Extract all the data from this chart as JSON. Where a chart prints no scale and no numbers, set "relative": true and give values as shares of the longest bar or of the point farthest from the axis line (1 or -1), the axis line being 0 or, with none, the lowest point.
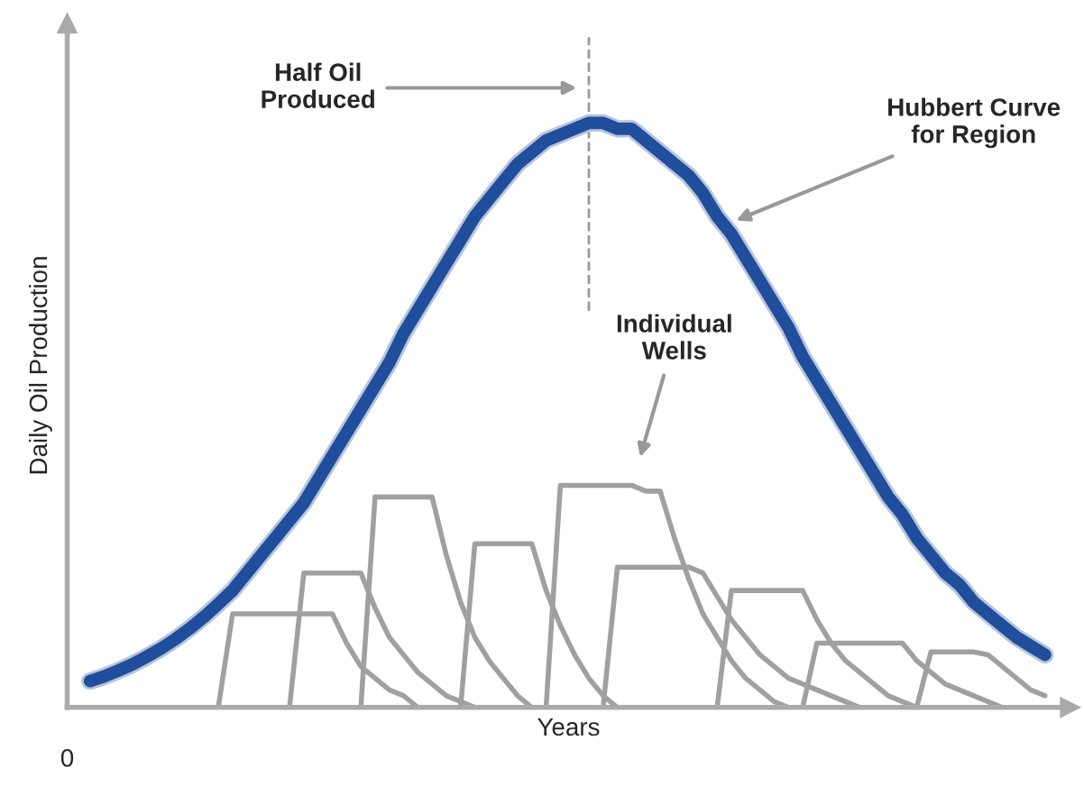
{
  "chart_data": {
    "type": "line",
    "relative": true,
    "xlabel": "Years",
    "ylabel": "Daily Oil Production",
    "categories": [
      null,
      null,
      null,
      null,
      null,
      null,
      null,
      null,
      null,
      null,
      null,
      null,
      null,
      null,
      null,
      null,
      null,
      null,
      null,
      null,
      null,
      null,
      null,
      null,
      null,
      null,
      null,
      null,
      null,
      null,
      null,
      null,
      null,
      null,
      null,
      null,
      null,
      null,
      null,
      null,
      null,
      null,
      null,
      null,
      null,
      null,
      null,
      null,
      null,
      null,
      null,
      null,
      null,
      null,
      null,
      null,
      null,
      null,
      null,
      null,
      null,
      null,
      null,
      null,
      null,
      null,
      null,
      null
    ],
    "series": [
      {
        "color": "#1f4e9c",
        "values": [
          0.045,
          0.053,
          0.063,
          0.074,
          0.087,
          0.101,
          0.117,
          0.135,
          0.155,
          0.177,
          0.2,
          0.23,
          0.26,
          0.29,
          0.32,
          0.35,
          0.39,
          0.43,
          0.47,
          0.51,
          0.55,
          0.59,
          0.64,
          0.68,
          0.72,
          0.76,
          0.8,
          0.84,
          0.87,
          0.9,
          0.93,
          0.95,
          0.97,
          0.98,
          0.99,
          1.0,
          1.0,
          0.99,
          0.99,
          0.97,
          0.95,
          0.93,
          0.91,
          0.88,
          0.84,
          0.81,
          0.77,
          0.73,
          0.69,
          0.65,
          0.6,
          0.56,
          0.52,
          0.48,
          0.44,
          0.4,
          0.36,
          0.33,
          0.29,
          0.26,
          0.23,
          0.21,
          0.18,
          0.16,
          0.14,
          0.12,
          0.105,
          0.09
        ]
      },
      {
        "color": "#a0a0a0",
        "values": [
          null,
          null,
          null,
          null,
          null,
          null,
          null,
          null,
          null,
          0,
          0.16,
          0.16,
          0.16,
          0.16,
          0.16,
          0.16,
          0.16,
          0.16,
          0.11,
          0.07,
          0.05,
          0.03,
          0.02,
          0,
          null,
          null,
          null,
          null,
          null,
          null,
          null,
          null,
          null,
          null,
          null,
          null,
          null,
          null,
          null,
          null,
          null,
          null,
          null,
          null,
          null,
          null,
          null,
          null,
          null,
          null,
          null,
          null,
          null,
          null,
          null,
          null,
          null,
          null,
          null,
          null,
          null,
          null,
          null,
          null,
          null,
          null,
          null,
          null
        ]
      },
      {
        "color": "#a0a0a0",
        "values": [
          null,
          null,
          null,
          null,
          null,
          null,
          null,
          null,
          null,
          null,
          null,
          null,
          null,
          null,
          0,
          0.23,
          0.23,
          0.23,
          0.23,
          0.23,
          0.17,
          0.12,
          0.09,
          0.06,
          0.04,
          0.02,
          0.01,
          0,
          null,
          null,
          null,
          null,
          null,
          null,
          null,
          null,
          null,
          null,
          null,
          null,
          null,
          null,
          null,
          null,
          null,
          null,
          null,
          null,
          null,
          null,
          null,
          null,
          null,
          null,
          null,
          null,
          null,
          null,
          null,
          null,
          null,
          null,
          null,
          null,
          null,
          null,
          null,
          null
        ]
      },
      {
        "color": "#a0a0a0",
        "values": [
          null,
          null,
          null,
          null,
          null,
          null,
          null,
          null,
          null,
          null,
          null,
          null,
          null,
          null,
          null,
          null,
          null,
          null,
          null,
          0,
          0.36,
          0.36,
          0.36,
          0.36,
          0.36,
          0.26,
          0.18,
          0.12,
          0.08,
          0.05,
          0.02,
          0,
          null,
          null,
          null,
          null,
          null,
          null,
          null,
          null,
          null,
          null,
          null,
          null,
          null,
          null,
          null,
          null,
          null,
          null,
          null,
          null,
          null,
          null,
          null,
          null,
          null,
          null,
          null,
          null,
          null,
          null,
          null,
          null,
          null,
          null,
          null,
          null
        ]
      },
      {
        "color": "#a0a0a0",
        "values": [
          null,
          null,
          null,
          null,
          null,
          null,
          null,
          null,
          null,
          null,
          null,
          null,
          null,
          null,
          null,
          null,
          null,
          null,
          null,
          null,
          null,
          null,
          null,
          null,
          null,
          null,
          0,
          0.28,
          0.28,
          0.28,
          0.28,
          0.28,
          0.2,
          0.14,
          0.09,
          0.05,
          0.02,
          0,
          null,
          null,
          null,
          null,
          null,
          null,
          null,
          null,
          null,
          null,
          null,
          null,
          null,
          null,
          null,
          null,
          null,
          null,
          null,
          null,
          null,
          null,
          null,
          null,
          null,
          null,
          null,
          null,
          null,
          null
        ]
      },
      {
        "color": "#a0a0a0",
        "values": [
          null,
          null,
          null,
          null,
          null,
          null,
          null,
          null,
          null,
          null,
          null,
          null,
          null,
          null,
          null,
          null,
          null,
          null,
          null,
          null,
          null,
          null,
          null,
          null,
          null,
          null,
          null,
          null,
          null,
          null,
          null,
          null,
          0,
          0.38,
          0.38,
          0.38,
          0.38,
          0.38,
          0.38,
          0.37,
          0.37,
          0.29,
          0.22,
          0.16,
          0.12,
          0.08,
          0.05,
          0.03,
          0.01,
          0,
          null,
          null,
          null,
          null,
          null,
          null,
          null,
          null,
          null,
          null,
          null,
          null,
          null,
          null,
          null,
          null,
          null,
          null
        ]
      },
      {
        "color": "#a0a0a0",
        "values": [
          null,
          null,
          null,
          null,
          null,
          null,
          null,
          null,
          null,
          null,
          null,
          null,
          null,
          null,
          null,
          null,
          null,
          null,
          null,
          null,
          null,
          null,
          null,
          null,
          null,
          null,
          null,
          null,
          null,
          null,
          null,
          null,
          null,
          null,
          null,
          null,
          0,
          0.24,
          0.24,
          0.24,
          0.24,
          0.24,
          0.24,
          0.23,
          0.19,
          0.15,
          0.12,
          0.09,
          0.07,
          0.05,
          0.04,
          0.03,
          0.02,
          0.01,
          0,
          null,
          null,
          null,
          null,
          null,
          null,
          null,
          null,
          null,
          null,
          null,
          null,
          null
        ]
      },
      {
        "color": "#a0a0a0",
        "values": [
          null,
          null,
          null,
          null,
          null,
          null,
          null,
          null,
          null,
          null,
          null,
          null,
          null,
          null,
          null,
          null,
          null,
          null,
          null,
          null,
          null,
          null,
          null,
          null,
          null,
          null,
          null,
          null,
          null,
          null,
          null,
          null,
          null,
          null,
          null,
          null,
          null,
          null,
          null,
          null,
          null,
          null,
          null,
          null,
          0,
          0.2,
          0.2,
          0.2,
          0.2,
          0.2,
          0.2,
          0.15,
          0.11,
          0.08,
          0.06,
          0.04,
          0.02,
          0.01,
          0,
          null,
          null,
          null,
          null,
          null,
          null,
          null,
          null,
          null
        ]
      },
      {
        "color": "#a0a0a0",
        "values": [
          null,
          null,
          null,
          null,
          null,
          null,
          null,
          null,
          null,
          null,
          null,
          null,
          null,
          null,
          null,
          null,
          null,
          null,
          null,
          null,
          null,
          null,
          null,
          null,
          null,
          null,
          null,
          null,
          null,
          null,
          null,
          null,
          null,
          null,
          null,
          null,
          null,
          null,
          null,
          null,
          null,
          null,
          null,
          null,
          null,
          null,
          null,
          null,
          null,
          null,
          0,
          0.11,
          0.11,
          0.11,
          0.11,
          0.11,
          0.11,
          0.11,
          0.08,
          0.06,
          0.04,
          0.03,
          0.02,
          0.01,
          0,
          null,
          null,
          null
        ]
      },
      {
        "color": "#a0a0a0",
        "values": [
          null,
          null,
          null,
          null,
          null,
          null,
          null,
          null,
          null,
          null,
          null,
          null,
          null,
          null,
          null,
          null,
          null,
          null,
          null,
          null,
          null,
          null,
          null,
          null,
          null,
          null,
          null,
          null,
          null,
          null,
          null,
          null,
          null,
          null,
          null,
          null,
          null,
          null,
          null,
          null,
          null,
          null,
          null,
          null,
          null,
          null,
          null,
          null,
          null,
          null,
          null,
          null,
          null,
          null,
          null,
          null,
          null,
          null,
          0,
          0.095,
          0.095,
          0.095,
          0.095,
          0.09,
          0.07,
          0.05,
          0.03,
          0.02
        ]
      }
    ],
    "annotations": [
      "Half Oil\nProduced",
      "Hubbert Curve\nfor Region",
      "Individual\nWells",
      "0"
    ]
  }
}
